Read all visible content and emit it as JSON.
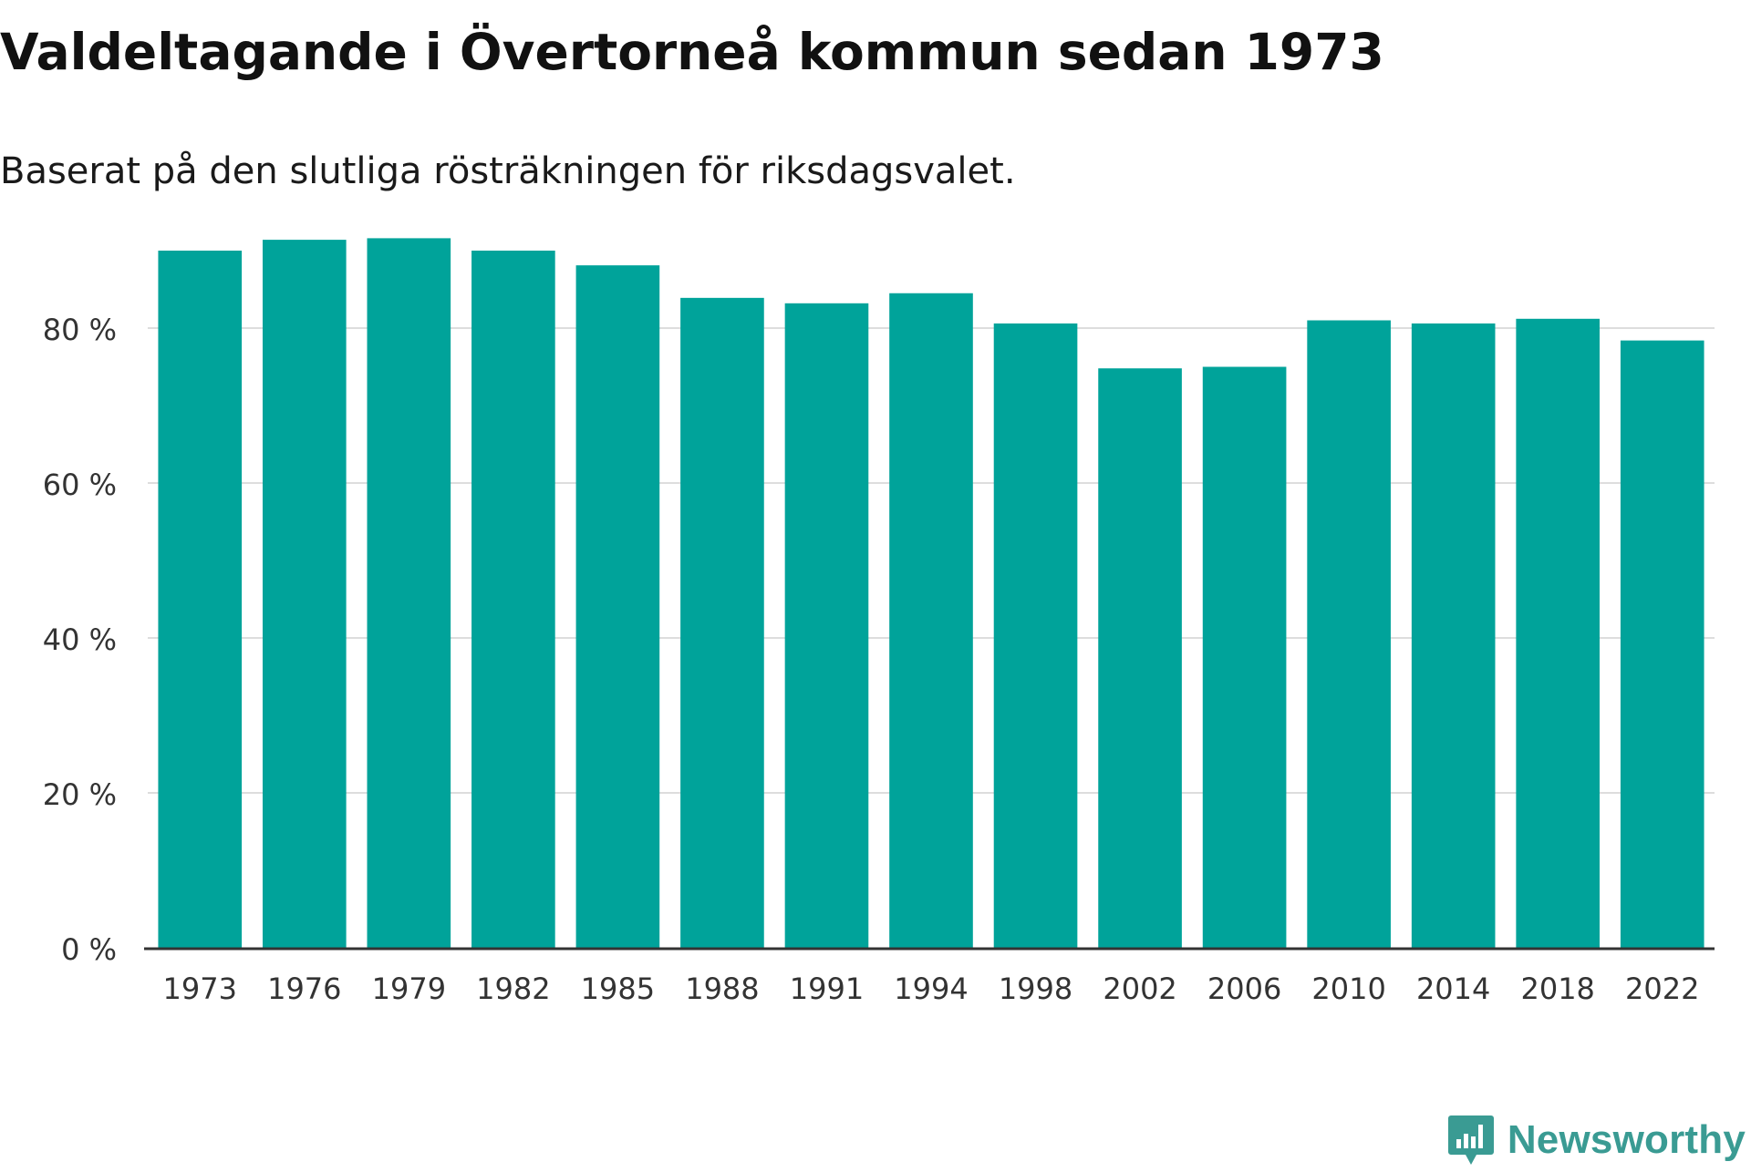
{
  "header": {
    "title": "Valdeltagande i Övertorneå kommun sedan 1973",
    "subtitle": "Baserat på den slutliga rösträkningen för riksdagsvalet."
  },
  "brand": {
    "name": "Newsworthy",
    "color": "#3a9b93",
    "icon": "newsworthy-logo-icon"
  },
  "chart_data": {
    "type": "bar",
    "title": "Valdeltagande i Övertorneå kommun sedan 1973",
    "subtitle": "Baserat på den slutliga rösträkningen för riksdagsvalet.",
    "xlabel": "",
    "ylabel": "",
    "categories": [
      "1973",
      "1976",
      "1979",
      "1982",
      "1985",
      "1988",
      "1991",
      "1994",
      "1998",
      "2002",
      "2006",
      "2010",
      "2014",
      "2018",
      "2022"
    ],
    "values": [
      90.0,
      91.4,
      91.6,
      90.0,
      88.1,
      83.9,
      83.2,
      84.5,
      80.6,
      74.8,
      75.0,
      81.0,
      80.6,
      81.2,
      78.4
    ],
    "ylim": [
      0,
      100
    ],
    "yticks": [
      0,
      20,
      40,
      60,
      80
    ],
    "ytick_labels": [
      "0 %",
      "20 %",
      "40 %",
      "60 %",
      "80 %"
    ],
    "grid": true,
    "legend": "none",
    "bar_color": "#00a39a",
    "grid_color": "#dddddd",
    "axis_color": "#333333"
  }
}
